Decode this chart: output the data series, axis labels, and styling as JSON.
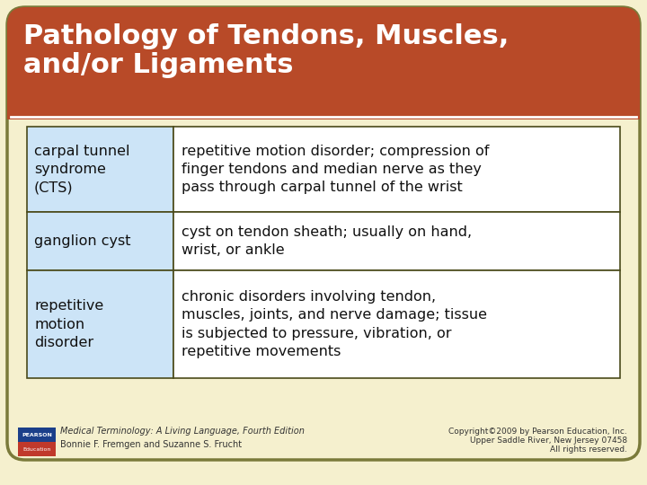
{
  "title_line1": "Pathology of Tendons, Muscles,",
  "title_line2": "and/or Ligaments",
  "bg_color": "#f5f0ce",
  "header_color": "#b84a28",
  "header_text_color": "#ffffff",
  "outer_border_color": "#7a7a3a",
  "table_border_color": "#4a4a1a",
  "cell_left_bg": "#cce4f7",
  "rows": [
    {
      "left": "carpal tunnel\nsyndrome\n(CTS)",
      "right": "repetitive motion disorder; compression of\nfinger tendons and median nerve as they\npass through carpal tunnel of the wrist"
    },
    {
      "left": "ganglion cyst",
      "right": "cyst on tendon sheath; usually on hand,\nwrist, or ankle"
    },
    {
      "left": "repetitive\nmotion\ndisorder",
      "right": "chronic disorders involving tendon,\nmuscles, joints, and nerve damage; tissue\nis subjected to pressure, vibration, or\nrepetitive movements"
    }
  ],
  "footer_left_italic": "Medical Terminology: A Living Language,",
  "footer_left_normal": " Fourth Edition",
  "footer_left_line2": "Bonnie F. Fremgen and Suzanne S. Frucht",
  "footer_right_line1": "Copyright©2009 by Pearson Education, Inc.",
  "footer_right_line2": "Upper Saddle River, New Jersey 07458",
  "footer_right_line3": "All rights reserved.",
  "pearson_top_color": "#1b3f8a",
  "pearson_bot_color": "#c0392b"
}
